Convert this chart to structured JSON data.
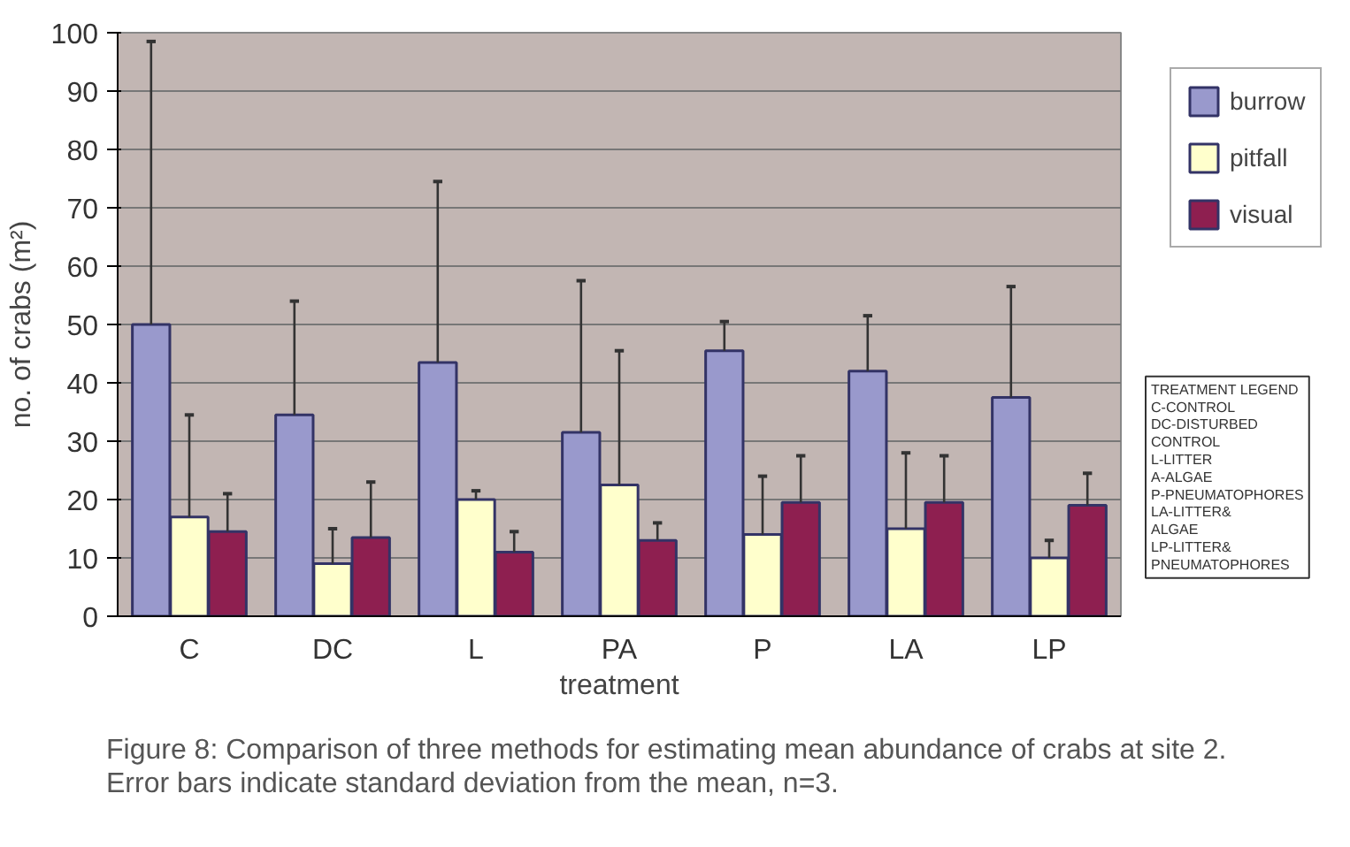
{
  "chart_data": {
    "type": "bar",
    "xlabel": "treatment",
    "ylabel": "no. of crabs (m²)",
    "categories": [
      "C",
      "DC",
      "L",
      "PA",
      "P",
      "LA",
      "LP"
    ],
    "ylim": [
      0,
      100
    ],
    "yticks": [
      0,
      10,
      20,
      30,
      40,
      50,
      60,
      70,
      80,
      90,
      100
    ],
    "grid": "y",
    "legend": "top right",
    "series": [
      {
        "name": "burrow",
        "color": "#9999cc",
        "values": [
          50,
          34.5,
          43.5,
          31.5,
          45.5,
          42,
          37.5
        ],
        "errors": [
          [
            50,
            98.5
          ],
          [
            34.5,
            54
          ],
          [
            43.5,
            74.5
          ],
          [
            31.5,
            57.5
          ],
          [
            45.5,
            50.5
          ],
          [
            42,
            51.5
          ],
          [
            37.5,
            56.5
          ]
        ]
      },
      {
        "name": "pitfall",
        "color": "#ffffcc",
        "values": [
          17,
          9,
          20,
          22.5,
          14,
          15,
          10
        ],
        "errors": [
          [
            17,
            34.5
          ],
          [
            9,
            15
          ],
          [
            20,
            21.5
          ],
          [
            22.5,
            45.5
          ],
          [
            14,
            24
          ],
          [
            15,
            28
          ],
          [
            10,
            13
          ]
        ]
      },
      {
        "name": "visual",
        "color": "#8e1f50",
        "values": [
          14.5,
          13.5,
          11,
          13,
          19.5,
          19.5,
          19
        ],
        "errors": [
          [
            14.5,
            21
          ],
          [
            13.5,
            23
          ],
          [
            11,
            14.5
          ],
          [
            13,
            16
          ],
          [
            19.5,
            27.5
          ],
          [
            19.5,
            27.5
          ],
          [
            19,
            24.5
          ]
        ]
      }
    ],
    "annotations": [
      "TREATMENT LEGEND\nC-CONTROL\nDC-DISTURBED\nCONTROL\nL-LITTER\nA-ALGAE\nP-PNEUMATOPHORES\nLA-LITTER&\nALGAE\nLP-LITTER&\nPNEUMATOPHORES",
      "Figure 8: Comparison of three methods for estimating mean abundance of crabs at site 2. Error bars indicate standard deviation from the mean, n=3."
    ]
  }
}
